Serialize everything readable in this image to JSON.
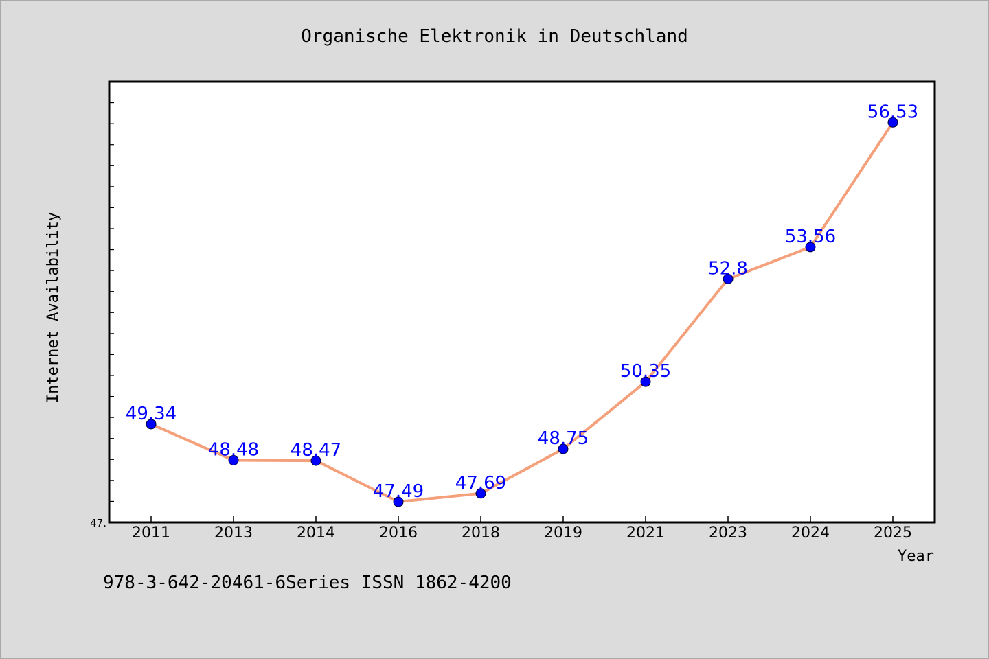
{
  "chart_data": {
    "type": "line",
    "title": "Organische Elektronik in Deutschland",
    "xlabel": "Year",
    "ylabel": "Internet Availability",
    "categories": [
      "2011",
      "2013",
      "2014",
      "2016",
      "2018",
      "2019",
      "2021",
      "2023",
      "2024",
      "2025"
    ],
    "series": [
      {
        "values": [
          49.34,
          48.48,
          48.47,
          47.49,
          47.69,
          48.75,
          50.35,
          52.8,
          53.56,
          56.53
        ],
        "labels": [
          "49.34",
          "48.48",
          "48.47",
          "47.49",
          "47.69",
          "48.75",
          "50.35",
          "52.8",
          "53.56",
          "56.53"
        ]
      }
    ],
    "ylim": [
      47.0,
      57.5
    ],
    "ytick_labels": [
      {
        "value": 47.0,
        "label": "47."
      }
    ],
    "grid": false,
    "legend": "none",
    "colors": {
      "line": "#f4a07a",
      "marker": "#0000ff",
      "data_label": "#0000ff",
      "plot_bg": "#ffffff",
      "page_bg": "#dcdcdc"
    }
  },
  "footer": {
    "text": "978-3-642-20461-6Series ISSN 1862-4200"
  }
}
